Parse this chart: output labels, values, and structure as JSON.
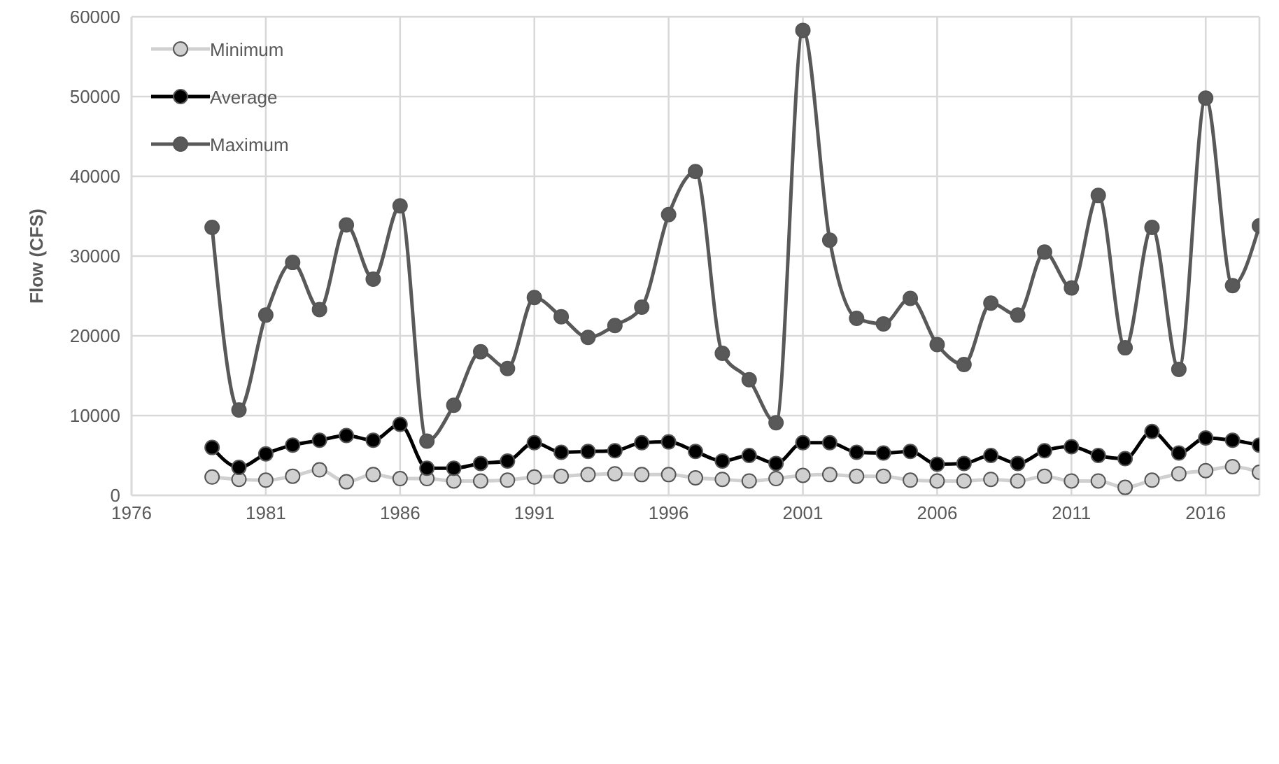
{
  "chart_data": {
    "type": "line",
    "ylabel": "Flow (CFS)",
    "x": [
      1979,
      1980,
      1981,
      1982,
      1983,
      1984,
      1985,
      1986,
      1987,
      1988,
      1989,
      1990,
      1991,
      1992,
      1993,
      1994,
      1995,
      1996,
      1997,
      1998,
      1999,
      2000,
      2001,
      2002,
      2003,
      2004,
      2005,
      2006,
      2007,
      2008,
      2009,
      2010,
      2011,
      2012,
      2013,
      2014,
      2015,
      2016,
      2017,
      2018
    ],
    "series": [
      {
        "name": "Minimum",
        "color": "#d0d0d0",
        "values": [
          2300,
          2000,
          1900,
          2400,
          3200,
          1700,
          2600,
          2100,
          2100,
          1800,
          1800,
          1900,
          2300,
          2400,
          2600,
          2700,
          2600,
          2600,
          2200,
          2000,
          1800,
          2100,
          2500,
          2600,
          2400,
          2400,
          1900,
          1800,
          1800,
          2000,
          1800,
          2400,
          1800,
          1800,
          1000,
          1900,
          2700,
          3100,
          3600,
          2900
        ]
      },
      {
        "name": "Average",
        "color": "#000000",
        "values": [
          6000,
          3500,
          5200,
          6300,
          6900,
          7500,
          6900,
          8900,
          3400,
          3400,
          4000,
          4300,
          6600,
          5400,
          5500,
          5600,
          6600,
          6700,
          5500,
          4300,
          5000,
          4000,
          6600,
          6600,
          5400,
          5300,
          5500,
          3900,
          4000,
          5000,
          4000,
          5600,
          6100,
          5000,
          4600,
          8000,
          5300,
          7200,
          6900,
          6300
        ]
      },
      {
        "name": "Maximum",
        "color": "#595959",
        "values": [
          33600,
          10700,
          22600,
          29200,
          23300,
          33900,
          27100,
          36300,
          6800,
          11300,
          18000,
          15900,
          24800,
          22400,
          19800,
          21300,
          23600,
          35200,
          40600,
          17800,
          14500,
          9100,
          58300,
          32000,
          22200,
          21500,
          24700,
          18900,
          16400,
          24100,
          22600,
          30500,
          26000,
          37600,
          18500,
          33600,
          15800,
          49800,
          26300,
          33800
        ]
      }
    ],
    "xlim": [
      1976,
      2018
    ],
    "xticks": [
      1976,
      1981,
      1986,
      1991,
      1996,
      2001,
      2006,
      2011,
      2016
    ],
    "ylim": [
      0,
      60000
    ],
    "yticks": [
      0,
      10000,
      20000,
      30000,
      40000,
      50000,
      60000
    ],
    "grid": true,
    "legend": "top left",
    "marker": "circle",
    "line_style": "solid"
  }
}
